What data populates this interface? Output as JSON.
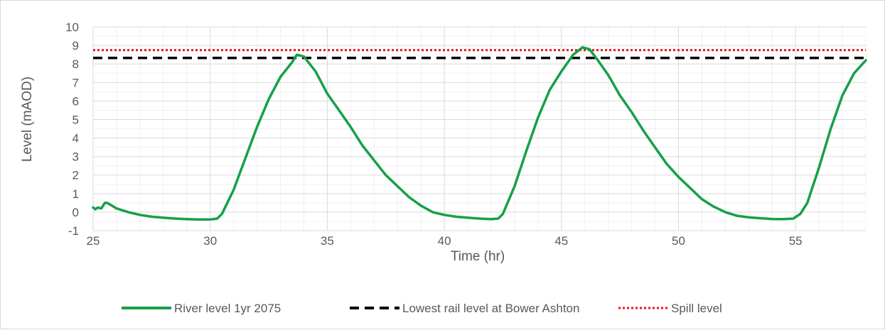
{
  "chart_data": {
    "type": "line",
    "xlabel": "Time (hr)",
    "ylabel": "Level (mAOD)",
    "xlim": [
      25,
      58
    ],
    "ylim": [
      -1,
      10
    ],
    "x_ticks": [
      25,
      30,
      35,
      40,
      45,
      50,
      55
    ],
    "y_ticks": [
      -1,
      0,
      1,
      2,
      3,
      4,
      5,
      6,
      7,
      8,
      9,
      10
    ],
    "grid": true,
    "legend_position": "bottom",
    "series": [
      {
        "name": "River level 1yr 2075",
        "color": "#16a049",
        "style": "solid",
        "x": [
          25.0,
          25.1,
          25.2,
          25.35,
          25.5,
          25.6,
          25.8,
          26.0,
          26.5,
          27.0,
          27.5,
          28.0,
          28.5,
          29.0,
          29.5,
          30.0,
          30.3,
          30.5,
          31.0,
          31.5,
          32.0,
          32.5,
          33.0,
          33.5,
          33.7,
          34.0,
          34.5,
          35.0,
          35.5,
          36.0,
          36.5,
          37.0,
          37.5,
          38.0,
          38.5,
          39.0,
          39.5,
          40.0,
          40.5,
          41.0,
          41.5,
          42.0,
          42.3,
          42.5,
          43.0,
          43.5,
          44.0,
          44.5,
          45.0,
          45.5,
          45.9,
          46.2,
          46.5,
          47.0,
          47.5,
          48.0,
          48.5,
          49.0,
          49.5,
          50.0,
          50.5,
          51.0,
          51.5,
          52.0,
          52.5,
          53.0,
          53.5,
          54.0,
          54.5,
          54.9,
          55.2,
          55.5,
          56.0,
          56.5,
          57.0,
          57.5,
          58.0
        ],
        "y": [
          0.25,
          0.15,
          0.25,
          0.2,
          0.5,
          0.5,
          0.35,
          0.2,
          0.0,
          -0.15,
          -0.25,
          -0.3,
          -0.35,
          -0.38,
          -0.4,
          -0.4,
          -0.35,
          -0.1,
          1.2,
          2.9,
          4.6,
          6.1,
          7.3,
          8.1,
          8.5,
          8.4,
          7.6,
          6.4,
          5.5,
          4.6,
          3.6,
          2.8,
          2.0,
          1.4,
          0.8,
          0.35,
          0.0,
          -0.15,
          -0.25,
          -0.3,
          -0.35,
          -0.38,
          -0.35,
          -0.1,
          1.4,
          3.3,
          5.1,
          6.6,
          7.6,
          8.5,
          8.9,
          8.8,
          8.3,
          7.4,
          6.3,
          5.4,
          4.4,
          3.5,
          2.6,
          1.9,
          1.3,
          0.7,
          0.3,
          0.0,
          -0.2,
          -0.28,
          -0.33,
          -0.37,
          -0.38,
          -0.35,
          -0.1,
          0.5,
          2.4,
          4.5,
          6.3,
          7.5,
          8.2
        ]
      },
      {
        "name": "Lowest rail level at Bower Ashton",
        "color": "#000000",
        "style": "dashed",
        "x": [
          25,
          58
        ],
        "y": [
          8.33,
          8.33
        ]
      },
      {
        "name": "Spill level",
        "color": "#e8141c",
        "style": "dotted",
        "x": [
          25,
          58
        ],
        "y": [
          8.75,
          8.75
        ]
      }
    ]
  }
}
